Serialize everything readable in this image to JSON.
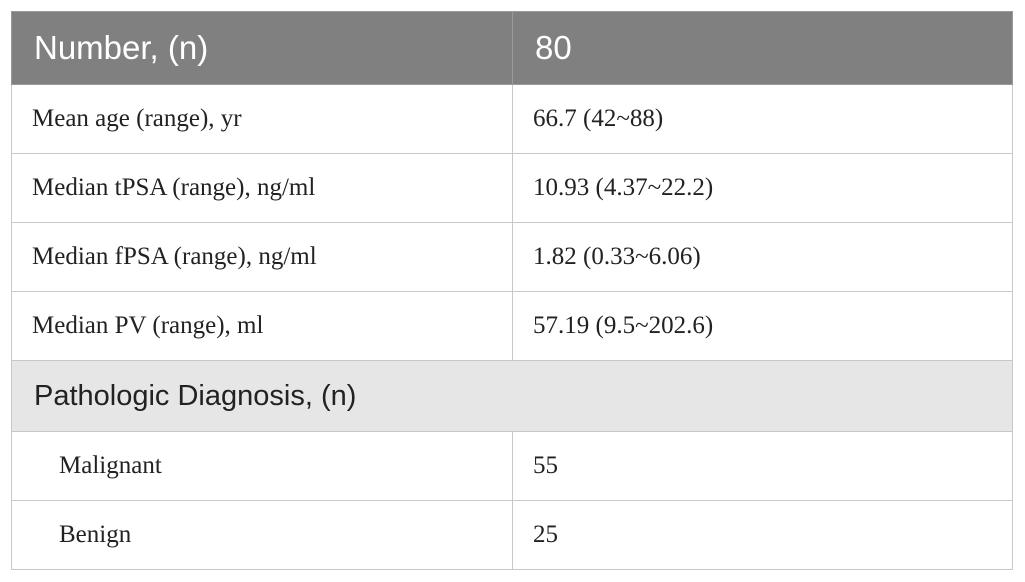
{
  "header": {
    "label": "Number, (n)",
    "value": "80"
  },
  "rows": [
    {
      "label": "Mean age (range), yr",
      "value": "66.7 (42~88)"
    },
    {
      "label": "Median tPSA (range), ng/ml",
      "value": "10.93 (4.37~22.2)"
    },
    {
      "label": "Median fPSA (range), ng/ml",
      "value": "1.82 (0.33~6.06)"
    },
    {
      "label": "Median PV (range), ml",
      "value": "57.19 (9.5~202.6)"
    }
  ],
  "section": {
    "title": "Pathologic Diagnosis, (n)"
  },
  "diagnosis_rows": [
    {
      "label": "Malignant",
      "value": "55"
    },
    {
      "label": "Benign",
      "value": "25"
    }
  ],
  "colors": {
    "header_bg": "#808080",
    "section_bg": "#e6e6e6",
    "border": "#c8c8c8"
  }
}
